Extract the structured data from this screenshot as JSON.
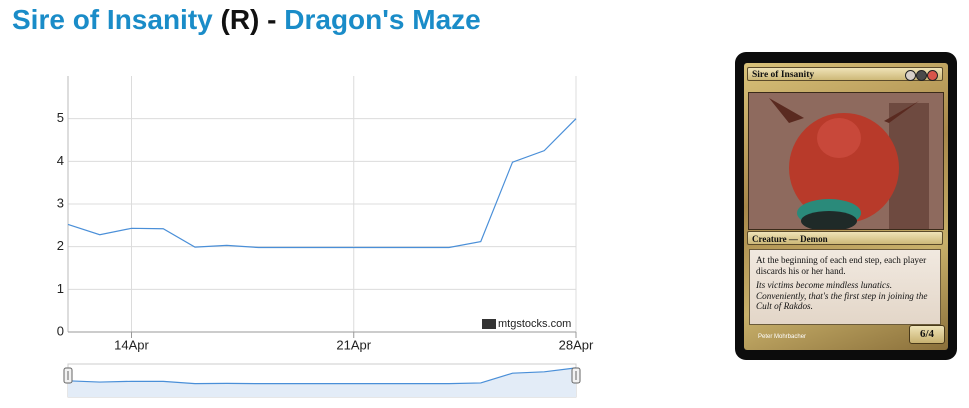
{
  "header": {
    "card_name": "Sire of Insanity",
    "rarity": "(R)",
    "separator": "-",
    "set_name": "Dragon's Maze"
  },
  "chart_data": {
    "type": "line",
    "x": [
      12,
      13,
      14,
      15,
      16,
      17,
      18,
      19,
      20,
      21,
      22,
      23,
      24,
      25,
      26,
      27,
      28
    ],
    "series": [
      {
        "color": "#4a8fd8",
        "values": [
          2.52,
          2.28,
          2.43,
          2.42,
          1.99,
          2.03,
          1.98,
          1.98,
          1.98,
          1.98,
          1.98,
          1.98,
          1.98,
          2.12,
          3.98,
          4.25,
          5.0
        ]
      }
    ],
    "xlim": [
      12,
      28
    ],
    "xticks": [
      {
        "value": 14,
        "label": "14Apr"
      },
      {
        "value": 21,
        "label": "21Apr"
      },
      {
        "value": 28,
        "label": "28Apr"
      }
    ],
    "ylim": [
      0,
      6
    ],
    "yticks": [
      0,
      1,
      2,
      3,
      4,
      5
    ],
    "grid": true,
    "watermark": "mtgstocks.com"
  },
  "card": {
    "name": "Sire of Insanity",
    "type_line": "Creature — Demon",
    "rules_text": "At the beginning of each end step, each player discards his or her hand.",
    "flavor_text": "Its victims become mindless lunatics. Conveniently, that's the first step in joining the Cult of Rakdos.",
    "artist": "Peter Mohrbacher",
    "power_toughness": "6/4"
  }
}
